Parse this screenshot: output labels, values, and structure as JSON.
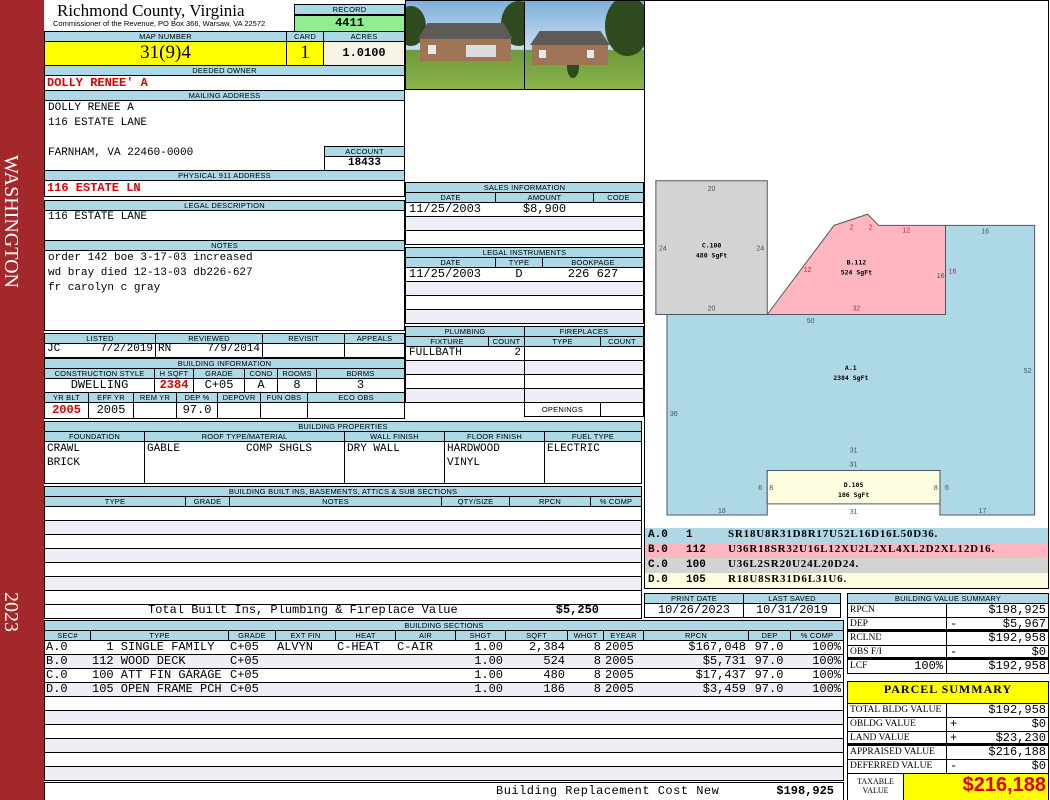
{
  "county": {
    "title": "Richmond County, Virginia",
    "subtitle": "Commissioner of the Revenue, PO Box 366, Warsaw, VA 22572"
  },
  "side": {
    "district": "WASHINGTON",
    "year": "2023"
  },
  "record": {
    "label": "RECORD",
    "value": "4411"
  },
  "map": {
    "map_number_label": "MAP NUMBER",
    "map_number": "31(9)4",
    "card_label": "CARD",
    "card": "1",
    "acres_label": "ACRES",
    "acres": "1.0100"
  },
  "owner": {
    "label": "DEEDED OWNER",
    "name": "DOLLY RENEE' A"
  },
  "mailing": {
    "label": "MAILING ADDRESS",
    "lines": [
      "DOLLY RENEE A",
      "116 ESTATE LANE",
      "FARNHAM, VA 22460-0000"
    ]
  },
  "account": {
    "label": "ACCOUNT",
    "value": "18433"
  },
  "physical": {
    "label": "PHYSICAL 911 ADDRESS",
    "value": "116 ESTATE LN"
  },
  "legal": {
    "label": "LEGAL DESCRIPTION",
    "value": "116 ESTATE LANE"
  },
  "notes": {
    "label": "NOTES",
    "lines": [
      "order 142 boe 3-17-03 increased",
      "wd bray died 12-13-03 db226-627",
      "fr carolyn c gray"
    ]
  },
  "review": {
    "headers": [
      "LISTED",
      "REVIEWED",
      "REVISIT",
      "APPEALS"
    ],
    "listed_by": "JC",
    "listed_date": "7/2/2019",
    "reviewed_by": "RN",
    "reviewed_date": "7/9/2014",
    "revisit": "",
    "appeals": ""
  },
  "building_info": {
    "label": "BUILDING INFORMATION",
    "headers1": [
      "CONSTRUCTION STYLE",
      "H SQFT",
      "GRADE",
      "COND",
      "ROOMS",
      "BDRMS"
    ],
    "values1": [
      "DWELLING",
      "2384",
      "C+05",
      "A",
      "8",
      "3"
    ],
    "headers2": [
      "YR BLT",
      "EFF YR",
      "REM YR",
      "DEP %",
      "DEPOVR",
      "FUN OBS",
      "ECO OBS"
    ],
    "values2": [
      "2005",
      "2005",
      "",
      "97.0",
      "",
      "",
      ""
    ]
  },
  "building_properties": {
    "label": "BUILDING PROPERTIES",
    "headers": [
      "FOUNDATION",
      "ROOF TYPE/MATERIAL",
      "WALL FINISH",
      "FLOOR FINISH",
      "FUEL TYPE"
    ],
    "values": [
      "CRAWL\nBRICK",
      "GABLE          COMP SHGLS",
      "DRY WALL",
      "HARDWOOD\nVINYL",
      "ELECTRIC"
    ]
  },
  "built_ins": {
    "label": "BUILDING BUILT INS, BASEMENTS, ATTICS & SUB SECTIONS",
    "headers": [
      "TYPE",
      "GRADE",
      "NOTES",
      "QTY/SIZE",
      "RPCN",
      "% COMP"
    ],
    "rows": [],
    "total_label": "Total Built Ins, Plumbing & Fireplace Value",
    "total_value": "$5,250"
  },
  "sales": {
    "label": "SALES INFORMATION",
    "headers": [
      "DATE",
      "AMOUNT",
      "CODE"
    ],
    "rows": [
      [
        "11/25/2003",
        "$8,900",
        ""
      ]
    ]
  },
  "legal_instruments": {
    "label": "LEGAL INSTRUMENTS",
    "headers": [
      "DATE",
      "TYPE",
      "BOOKPAGE"
    ],
    "rows": [
      [
        "11/25/2003",
        "D",
        "226 627"
      ]
    ]
  },
  "plumbing": {
    "label": "PLUMBING",
    "headers": [
      "FIXTURE",
      "COUNT"
    ],
    "rows": [
      [
        "FULLBATH",
        "2"
      ]
    ]
  },
  "fireplaces": {
    "label": "FIREPLACES",
    "headers": [
      "TYPE",
      "COUNT"
    ],
    "rows": [],
    "openings_label": "OPENINGS",
    "openings": ""
  },
  "sketch": {
    "areas": [
      {
        "code": "A.0",
        "id": "1",
        "trace": "SR18U8R31D8R17U52L16D16L50D36.",
        "label": "A.1",
        "sqft_label": "2384 SgFt",
        "color": "#add8e6"
      },
      {
        "code": "B.0",
        "id": "112",
        "trace": "U36R18SR32U16L12XU2L2XL4XL2D2XL12D16.",
        "label": "B.112",
        "sqft_label": "524 SgFt",
        "color": "#ffb6c1"
      },
      {
        "code": "C.0",
        "id": "100",
        "trace": "U36L2SR20U24L20D24.",
        "label": "C.100",
        "sqft_label": "480 SgFt",
        "color": "#d3d3d3"
      },
      {
        "code": "D.0",
        "id": "105",
        "trace": "R18U8SR31D6L31U6.",
        "label": "D.105",
        "sqft_label": "186 SgFt",
        "color": "#fffde0"
      }
    ]
  },
  "dates": {
    "print_date_label": "PRINT DATE",
    "print_date": "10/26/2023",
    "last_saved_label": "LAST SAVED",
    "last_saved": "10/31/2019"
  },
  "building_sections": {
    "label": "BUILDING SECTIONS",
    "headers": [
      "SEC#",
      "TYPE",
      "GRADE",
      "EXT FIN",
      "HEAT",
      "AIR",
      "SHGT",
      "SQFT",
      "WHGT",
      "EYEAR",
      "RPCN",
      "DEP",
      "% COMP"
    ],
    "rows": [
      [
        "A.0",
        "  1 SINGLE FAMILY",
        "C+05",
        "ALVYN",
        "C-HEAT",
        "C-AIR",
        "1.00",
        "2,384",
        "8",
        "2005",
        "$167,048",
        "97.0",
        "100%"
      ],
      [
        "B.0",
        "112 WOOD DECK",
        "C+05",
        "",
        "",
        "",
        "1.00",
        "524",
        "8",
        "2005",
        "$5,731",
        "97.0",
        "100%"
      ],
      [
        "C.0",
        "100 ATT FIN GARAGE",
        "C+05",
        "",
        "",
        "",
        "1.00",
        "480",
        "8",
        "2005",
        "$17,437",
        "97.0",
        "100%"
      ],
      [
        "D.0",
        "105 OPEN FRAME PCH",
        "C+05",
        "",
        "",
        "",
        "1.00",
        "186",
        "8",
        "2005",
        "$3,459",
        "97.0",
        "100%"
      ]
    ],
    "total_label": "Building Replacement Cost New",
    "total_value": "$198,925"
  },
  "value_summary": {
    "label": "BUILDING VALUE SUMMARY",
    "rows": [
      {
        "label": "RPCN",
        "pct": "",
        "sign": "",
        "value": "$198,925"
      },
      {
        "label": "DEP",
        "pct": "",
        "sign": "-",
        "value": "$5,967"
      },
      {
        "label": "RCLND",
        "pct": "",
        "sign": "",
        "value": "$192,958"
      },
      {
        "label": "OBS F/E",
        "pct": "",
        "sign": "-",
        "value": "$0"
      },
      {
        "label": "LCF",
        "pct": "100%",
        "sign": "",
        "value": "$192,958"
      }
    ]
  },
  "parcel_summary": {
    "label": "PARCEL SUMMARY",
    "rows": [
      {
        "label": "TOTAL BLDG VALUE",
        "sign": "",
        "value": "$192,958"
      },
      {
        "label": "OBLDG VALUE",
        "sign": "+",
        "value": "$0"
      },
      {
        "label": "LAND VALUE",
        "sign": "+",
        "value": "$23,230"
      },
      {
        "label": "APPRAISED VALUE",
        "sign": "",
        "value": "$216,188"
      },
      {
        "label": "DEFERRED VALUE",
        "sign": "-",
        "value": "$0"
      }
    ],
    "taxable_label": "TAXABLE\nVALUE",
    "taxable_value": "$216,188"
  },
  "colors": {
    "sidebar": "#a3282b",
    "header_bg": "#add8e6",
    "record_bg": "#90ee90",
    "highlight": "#ffff00",
    "alert_text": "#e00000"
  }
}
